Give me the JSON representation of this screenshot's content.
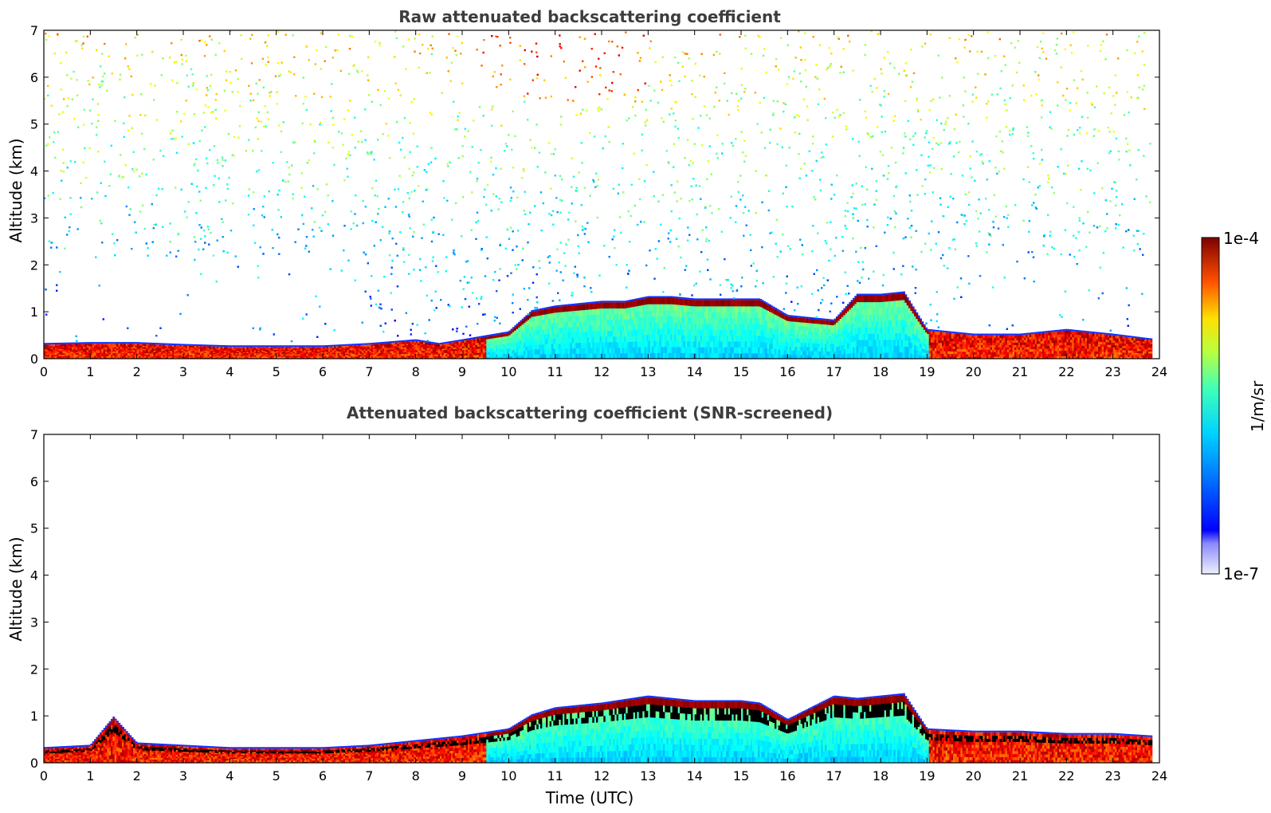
{
  "chart_data": [
    {
      "type": "heatmap",
      "title": "Raw attenuated backscattering coefficient",
      "xlabel": "",
      "ylabel": "Altitude (km)",
      "xlim": [
        0,
        24
      ],
      "ylim": [
        0,
        7
      ],
      "x_ticks": [
        "0",
        "1",
        "2",
        "3",
        "4",
        "5",
        "6",
        "7",
        "8",
        "9",
        "10",
        "11",
        "12",
        "13",
        "14",
        "15",
        "16",
        "17",
        "18",
        "19",
        "20",
        "21",
        "22",
        "23",
        "24"
      ],
      "y_ticks": [
        "0",
        "1",
        "2",
        "3",
        "4",
        "5",
        "6",
        "7"
      ],
      "layer_top_km": {
        "time_utc": [
          0,
          1,
          2,
          3,
          4,
          5,
          6,
          7,
          8,
          8.5,
          9,
          10,
          10.5,
          11,
          11.5,
          12,
          12.5,
          13,
          13.5,
          14,
          14.5,
          15,
          15.4,
          16,
          16.5,
          17,
          17.5,
          18,
          18.5,
          19,
          19.5,
          20,
          21,
          22,
          23,
          23.8
        ],
        "altitude_km": [
          0.3,
          0.32,
          0.32,
          0.28,
          0.25,
          0.25,
          0.25,
          0.3,
          0.38,
          0.3,
          0.38,
          0.55,
          1.0,
          1.1,
          1.15,
          1.2,
          1.2,
          1.3,
          1.3,
          1.25,
          1.25,
          1.25,
          1.25,
          0.9,
          0.85,
          0.8,
          1.35,
          1.35,
          1.4,
          0.6,
          0.55,
          0.5,
          0.5,
          0.6,
          0.5,
          0.4
        ]
      }
    },
    {
      "type": "heatmap",
      "title": "Attenuated backscattering coefficient (SNR-screened)",
      "xlabel": "Time (UTC)",
      "ylabel": "Altitude (km)",
      "xlim": [
        0,
        24
      ],
      "ylim": [
        0,
        7
      ],
      "x_ticks": [
        "0",
        "1",
        "2",
        "3",
        "4",
        "5",
        "6",
        "7",
        "8",
        "9",
        "10",
        "11",
        "12",
        "13",
        "14",
        "15",
        "16",
        "17",
        "18",
        "19",
        "20",
        "21",
        "22",
        "23",
        "24"
      ],
      "y_ticks": [
        "0",
        "1",
        "2",
        "3",
        "4",
        "5",
        "6",
        "7"
      ],
      "layer_top_km": {
        "time_utc": [
          0,
          1,
          1.5,
          2,
          3,
          4,
          5,
          6,
          7,
          8,
          9,
          10,
          10.5,
          11,
          12,
          13,
          14,
          15,
          15.4,
          16,
          17,
          17.5,
          18,
          18.5,
          19,
          20,
          21,
          22,
          23,
          23.8
        ],
        "altitude_km": [
          0.3,
          0.35,
          0.95,
          0.4,
          0.35,
          0.3,
          0.3,
          0.3,
          0.35,
          0.45,
          0.55,
          0.7,
          1.0,
          1.15,
          1.25,
          1.4,
          1.3,
          1.3,
          1.25,
          0.9,
          1.4,
          1.35,
          1.4,
          1.45,
          0.7,
          0.65,
          0.65,
          0.6,
          0.6,
          0.55
        ]
      }
    }
  ],
  "colorbar": {
    "label": "1/m/sr",
    "max_label": "1e-4",
    "min_label": "1e-7",
    "scale": "log",
    "colormap": "jet",
    "range": [
      1e-07,
      0.0001
    ]
  }
}
